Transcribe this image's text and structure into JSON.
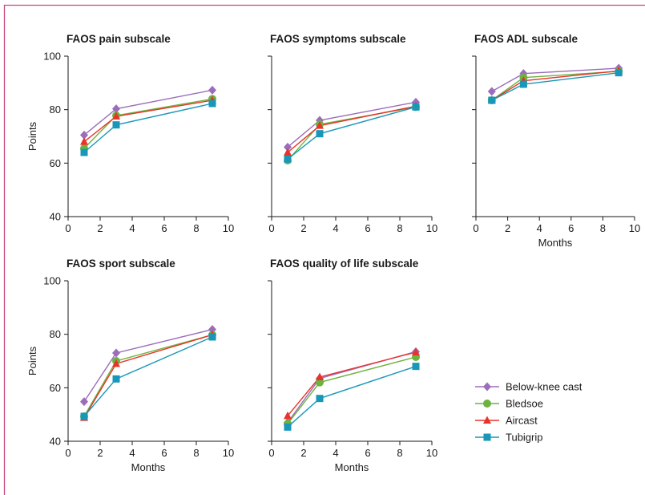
{
  "colors": {
    "frame": "#c8477e",
    "Below-knee cast": "#9b6dbb",
    "Bledsoe": "#6db33f",
    "Aircast": "#e8332a",
    "Tubigrip": "#1897b8"
  },
  "legend": {
    "entries": [
      {
        "name": "Below-knee cast",
        "marker": "diamond"
      },
      {
        "name": "Bledsoe",
        "marker": "circle"
      },
      {
        "name": "Aircast",
        "marker": "triangle"
      },
      {
        "name": "Tubigrip",
        "marker": "square"
      }
    ],
    "placement": "right"
  },
  "chart_data": [
    {
      "type": "line",
      "title": "FAOS pain subscale",
      "xlabel": "",
      "ylabel": "Points",
      "xlim": [
        0,
        10
      ],
      "ylim": [
        40,
        100
      ],
      "xticks": [
        0,
        2,
        4,
        6,
        8,
        10
      ],
      "yticks": [
        40,
        60,
        80,
        100
      ],
      "x": [
        1,
        3,
        9
      ],
      "series": [
        {
          "name": "Below-knee cast",
          "values": [
            70.5,
            80.3,
            87.3
          ]
        },
        {
          "name": "Bledsoe",
          "values": [
            65.5,
            77.8,
            84
          ]
        },
        {
          "name": "Aircast",
          "values": [
            68,
            77.5,
            83.5
          ]
        },
        {
          "name": "Tubigrip",
          "values": [
            64,
            74.3,
            82.3
          ]
        }
      ]
    },
    {
      "type": "line",
      "title": "FAOS symptoms subscale",
      "xlabel": "",
      "ylabel": "",
      "xlim": [
        0,
        10
      ],
      "ylim": [
        40,
        100
      ],
      "xticks": [
        0,
        2,
        4,
        6,
        8,
        10
      ],
      "yticks": [
        40,
        60,
        80,
        100
      ],
      "x": [
        1,
        3,
        9
      ],
      "series": [
        {
          "name": "Below-knee cast",
          "values": [
            66,
            76,
            82.8
          ]
        },
        {
          "name": "Bledsoe",
          "values": [
            61,
            74.5,
            81
          ]
        },
        {
          "name": "Aircast",
          "values": [
            64,
            74,
            81.3
          ]
        },
        {
          "name": "Tubigrip",
          "values": [
            61.5,
            71,
            81
          ]
        }
      ]
    },
    {
      "type": "line",
      "title": "FAOS ADL subscale",
      "xlabel": "Months",
      "ylabel": "",
      "xlim": [
        0,
        10
      ],
      "ylim": [
        40,
        100
      ],
      "xticks": [
        0,
        2,
        4,
        6,
        8,
        10
      ],
      "yticks": [
        40,
        60,
        80,
        100
      ],
      "x": [
        1,
        3,
        9
      ],
      "series": [
        {
          "name": "Below-knee cast",
          "values": [
            86.8,
            93.5,
            95.5
          ]
        },
        {
          "name": "Bledsoe",
          "values": [
            83.5,
            92,
            94.3
          ]
        },
        {
          "name": "Aircast",
          "values": [
            83.5,
            90.8,
            94.5
          ]
        },
        {
          "name": "Tubigrip",
          "values": [
            83.5,
            89.5,
            93.8
          ]
        }
      ]
    },
    {
      "type": "line",
      "title": "FAOS sport subscale",
      "xlabel": "Months",
      "ylabel": "Points",
      "xlim": [
        0,
        10
      ],
      "ylim": [
        40,
        100
      ],
      "xticks": [
        0,
        2,
        4,
        6,
        8,
        10
      ],
      "yticks": [
        40,
        60,
        80,
        100
      ],
      "x": [
        1,
        3,
        9
      ],
      "series": [
        {
          "name": "Below-knee cast",
          "values": [
            54.8,
            73,
            81.8
          ]
        },
        {
          "name": "Bledsoe",
          "values": [
            49.3,
            70,
            79.8
          ]
        },
        {
          "name": "Aircast",
          "values": [
            48.8,
            69,
            79.8
          ]
        },
        {
          "name": "Tubigrip",
          "values": [
            49.3,
            63.3,
            79
          ]
        }
      ]
    },
    {
      "type": "line",
      "title": "FAOS quality of life subscale",
      "xlabel": "Months",
      "ylabel": "",
      "xlim": [
        0,
        10
      ],
      "ylim": [
        40,
        100
      ],
      "xticks": [
        0,
        2,
        4,
        6,
        8,
        10
      ],
      "yticks": [
        40,
        60,
        80,
        100
      ],
      "x": [
        1,
        3,
        9
      ],
      "series": [
        {
          "name": "Below-knee cast",
          "values": [
            47,
            63.5,
            73.5
          ]
        },
        {
          "name": "Bledsoe",
          "values": [
            46.5,
            62,
            71.5
          ]
        },
        {
          "name": "Aircast",
          "values": [
            49.5,
            64,
            73.3
          ]
        },
        {
          "name": "Tubigrip",
          "values": [
            45.3,
            56,
            68
          ]
        }
      ]
    }
  ]
}
